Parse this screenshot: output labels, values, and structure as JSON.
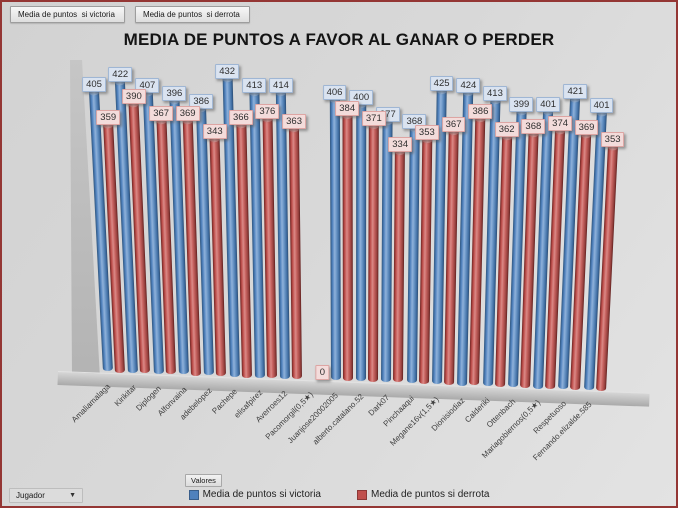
{
  "window": {
    "border_color": "#943634",
    "background_color": "#d8d8d8"
  },
  "field_buttons": [
    {
      "label": "Media de puntos  si victoria"
    },
    {
      "label": "Media de puntos  si derrota"
    }
  ],
  "title": "MEDIA DE PUNTOS A FAVOR AL GANAR O PERDER",
  "values_button": {
    "label": "Valores"
  },
  "jugador_button": {
    "label": "Jugador",
    "arrow_icon": "▼"
  },
  "legend": {
    "position": "bottom",
    "items": [
      {
        "label": "Media de puntos si victoria",
        "color": "#4F81BD"
      },
      {
        "label": "Media de puntos si derrota",
        "color": "#C0504D"
      }
    ]
  },
  "chart_data": {
    "type": "bar",
    "subtype": "3d-cylinder",
    "title": "MEDIA DE PUNTOS A FAVOR AL GANAR O PERDER",
    "xlabel": "",
    "ylabel": "",
    "ylim": [
      0,
      440
    ],
    "grid": false,
    "data_labels": true,
    "legend_position": "bottom",
    "categories": [
      "Amaliamalaga",
      "Kirikitar",
      "Diplogen",
      "Alfonvaina",
      "adebelopez",
      "Pachepe",
      "elisafpirez",
      "Averroes12",
      "Pacomorgil(0,5★)",
      "Juanjose20002005",
      "alberto.catalano.52",
      "Dark07",
      "Pinchaaqui",
      "Megane16v(1,5★)",
      "Dionisiodiaz",
      "Calderiki",
      "Ottenbach",
      "Mariagobiernos(0,5★)",
      "Respetuoso",
      "Fernando.elizalde.585"
    ],
    "series": [
      {
        "name": "Media de puntos si victoria",
        "color": "#4F81BD",
        "values": [
          405,
          422,
          407,
          396,
          386,
          432,
          413,
          414,
          0,
          406,
          400,
          377,
          368,
          425,
          424,
          413,
          399,
          401,
          421,
          401
        ]
      },
      {
        "name": "Media de puntos si derrota",
        "color": "#C0504D",
        "values": [
          359,
          390,
          367,
          369,
          343,
          366,
          376,
          363,
          0,
          384,
          371,
          334,
          353,
          367,
          386,
          362,
          368,
          374,
          369,
          353
        ]
      }
    ]
  }
}
